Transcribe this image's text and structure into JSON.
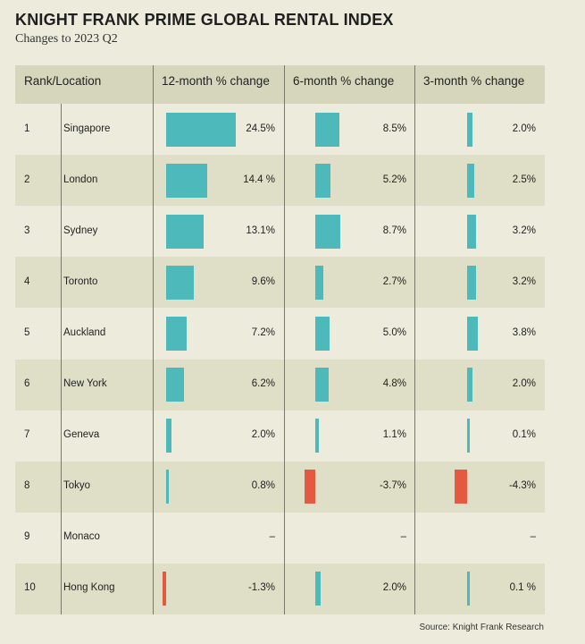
{
  "title": "KNIGHT FRANK PRIME GLOBAL RENTAL INDEX",
  "subtitle": "Changes to 2023 Q2",
  "source": "Source: Knight Frank Research",
  "colors": {
    "positive": "#4db9bb",
    "negative": "#e45a40"
  },
  "chart_data": {
    "type": "table",
    "columns": [
      "Rank/Location",
      "12-month % change",
      "6-month % change",
      "3-month % change"
    ],
    "rows": [
      {
        "rank": "1",
        "location": "Singapore",
        "m12": 24.5,
        "m12_label": "24.5%",
        "m6": 8.5,
        "m6_label": "8.5%",
        "m3": 2.0,
        "m3_label": "2.0%"
      },
      {
        "rank": "2",
        "location": "London",
        "m12": 14.4,
        "m12_label": "14.4 %",
        "m6": 5.2,
        "m6_label": "5.2%",
        "m3": 2.5,
        "m3_label": "2.5%"
      },
      {
        "rank": "3",
        "location": "Sydney",
        "m12": 13.1,
        "m12_label": "13.1%",
        "m6": 8.7,
        "m6_label": "8.7%",
        "m3": 3.2,
        "m3_label": "3.2%"
      },
      {
        "rank": "4",
        "location": "Toronto",
        "m12": 9.6,
        "m12_label": "9.6%",
        "m6": 2.7,
        "m6_label": "2.7%",
        "m3": 3.2,
        "m3_label": "3.2%"
      },
      {
        "rank": "5",
        "location": "Auckland",
        "m12": 7.2,
        "m12_label": "7.2%",
        "m6": 5.0,
        "m6_label": "5.0%",
        "m3": 3.8,
        "m3_label": "3.8%"
      },
      {
        "rank": "6",
        "location": "New York",
        "m12": 6.2,
        "m12_label": "6.2%",
        "m6": 4.8,
        "m6_label": "4.8%",
        "m3": 2.0,
        "m3_label": "2.0%"
      },
      {
        "rank": "7",
        "location": "Geneva",
        "m12": 2.0,
        "m12_label": "2.0%",
        "m6": 1.1,
        "m6_label": "1.1%",
        "m3": 0.1,
        "m3_label": "0.1%"
      },
      {
        "rank": "8",
        "location": "Tokyo",
        "m12": 0.8,
        "m12_label": "0.8%",
        "m6": -3.7,
        "m6_label": "-3.7%",
        "m3": -4.3,
        "m3_label": "-4.3%"
      },
      {
        "rank": "9",
        "location": "Monaco",
        "m12": null,
        "m12_label": "–",
        "m6": null,
        "m6_label": "–",
        "m3": null,
        "m3_label": "–"
      },
      {
        "rank": "10",
        "location": "Hong Kong",
        "m12": -1.3,
        "m12_label": "-1.3%",
        "m6": 2.0,
        "m6_label": "2.0%",
        "m3": 0.1,
        "m3_label": "0.1 %"
      }
    ]
  }
}
